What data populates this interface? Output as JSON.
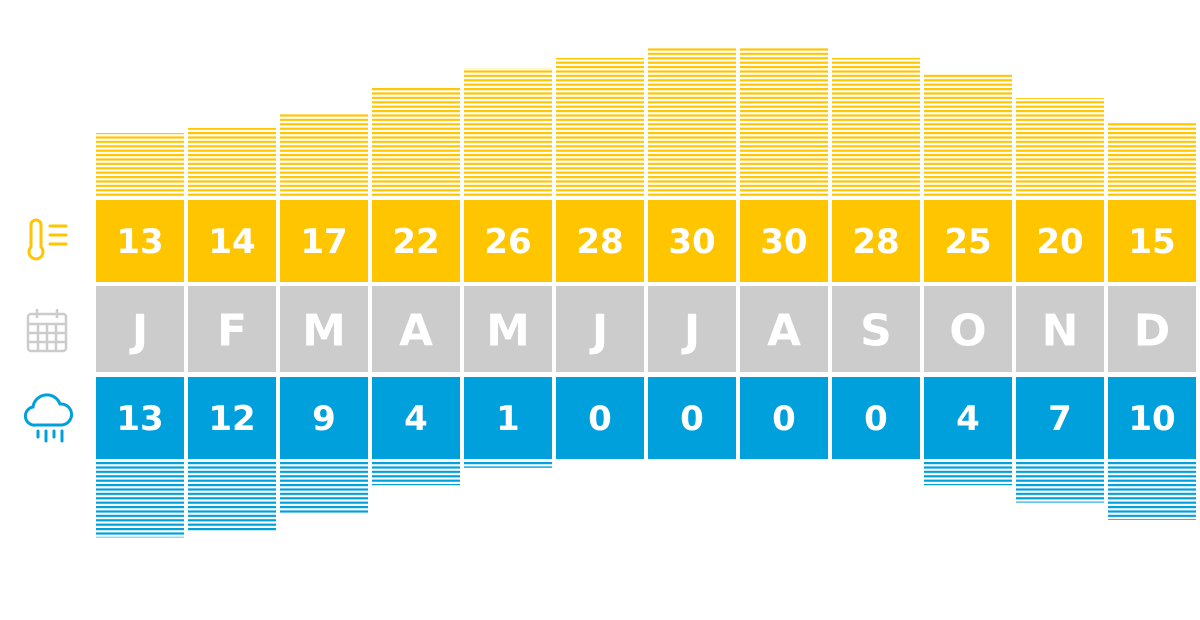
{
  "chart_data": {
    "type": "climate",
    "categories": [
      "J",
      "F",
      "M",
      "A",
      "M",
      "J",
      "J",
      "A",
      "S",
      "O",
      "N",
      "D"
    ],
    "temperature": {
      "values": [
        13,
        14,
        17,
        22,
        26,
        28,
        30,
        30,
        28,
        25,
        20,
        15
      ],
      "color": "#ffc600"
    },
    "rain": {
      "values": [
        13,
        12,
        9,
        4,
        1,
        0,
        0,
        0,
        0,
        4,
        7,
        10
      ],
      "color": "#00a0dc"
    },
    "month_color": "#cccccc"
  }
}
